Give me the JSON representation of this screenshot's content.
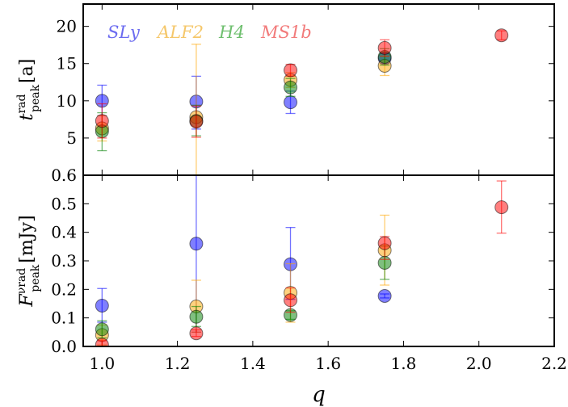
{
  "chart_data": {
    "type": "scatter",
    "x_axis": {
      "label": "q",
      "lim": [
        0.95,
        2.2
      ],
      "ticks": [
        1.0,
        1.2,
        1.4,
        1.6,
        1.8,
        2.0,
        2.2
      ],
      "tick_labels": [
        "1.0",
        "1.2",
        "1.4",
        "1.6",
        "1.8",
        "2.0",
        "2.2"
      ]
    },
    "legend": {
      "placement": "top-left",
      "entries": [
        {
          "label": "SLy",
          "color": "#6b6bf0"
        },
        {
          "label": "ALF2",
          "color": "#f5c76a"
        },
        {
          "label": "H4",
          "color": "#6ebf6e"
        },
        {
          "label": "MS1b",
          "color": "#f27b7b"
        }
      ]
    },
    "series_colors": {
      "SLy": "#0000ff",
      "ALF2": "#ffa500",
      "H4": "#008000",
      "MS1b": "#ff0000"
    },
    "panels": [
      {
        "id": "top",
        "ylabel_main": "t",
        "ylabel_sup": "rad",
        "ylabel_sub": "peak",
        "ylabel_unit": "[a]",
        "ylim": [
          0,
          23
        ],
        "ticks": [
          5,
          10,
          15,
          20
        ],
        "tick_labels": [
          "5",
          "10",
          "15",
          "20"
        ],
        "series": [
          {
            "name": "SLy",
            "points": [
              {
                "x": 1.0,
                "y": 10.0,
                "lo": 8.0,
                "hi": 12.1
              },
              {
                "x": 1.25,
                "y": 9.9,
                "lo": 6.2,
                "hi": 13.3
              },
              {
                "x": 1.5,
                "y": 9.8,
                "lo": 8.3,
                "hi": 11.3
              },
              {
                "x": 1.75,
                "y": 15.7,
                "lo": 15.0,
                "hi": 16.4
              }
            ]
          },
          {
            "name": "ALF2",
            "points": [
              {
                "x": 1.0,
                "y": 6.3,
                "lo": 4.6,
                "hi": 8.0
              },
              {
                "x": 1.25,
                "y": 7.8,
                "lo": 0.0,
                "hi": 17.6
              },
              {
                "x": 1.5,
                "y": 12.8,
                "lo": 11.8,
                "hi": 13.8
              },
              {
                "x": 1.75,
                "y": 14.7,
                "lo": 13.4,
                "hi": 16.0
              }
            ]
          },
          {
            "name": "H4",
            "points": [
              {
                "x": 1.0,
                "y": 5.9,
                "lo": 3.3,
                "hi": 8.4
              },
              {
                "x": 1.25,
                "y": 7.3,
                "lo": 5.3,
                "hi": 9.4
              },
              {
                "x": 1.5,
                "y": 11.8,
                "lo": 10.6,
                "hi": 13.0
              },
              {
                "x": 1.75,
                "y": 15.9,
                "lo": 14.8,
                "hi": 17.0
              }
            ]
          },
          {
            "name": "MS1b",
            "points": [
              {
                "x": 1.0,
                "y": 7.3,
                "lo": 5.0,
                "hi": 9.6
              },
              {
                "x": 1.25,
                "y": 7.2,
                "lo": 5.1,
                "hi": 9.3
              },
              {
                "x": 1.5,
                "y": 14.1,
                "lo": 13.3,
                "hi": 14.9
              },
              {
                "x": 1.75,
                "y": 17.1,
                "lo": 16.0,
                "hi": 18.2
              },
              {
                "x": 2.06,
                "y": 18.8,
                "lo": 18.2,
                "hi": 19.4
              }
            ]
          }
        ]
      },
      {
        "id": "bottom",
        "ylabel_main": "F",
        "ylabel_sup": "νrad",
        "ylabel_sub": "peak",
        "ylabel_unit": "[mJy]",
        "ylim": [
          0,
          0.6
        ],
        "ticks": [
          0.0,
          0.1,
          0.2,
          0.3,
          0.4,
          0.5,
          0.6
        ],
        "tick_labels": [
          "0.0",
          "0.1",
          "0.2",
          "0.3",
          "0.4",
          "0.5",
          "0.6"
        ],
        "series": [
          {
            "name": "SLy",
            "points": [
              {
                "x": 1.0,
                "y": 0.143,
                "lo": 0.085,
                "hi": 0.203
              },
              {
                "x": 1.25,
                "y": 0.36,
                "lo": 0.05,
                "hi": 0.6
              },
              {
                "x": 1.5,
                "y": 0.288,
                "lo": 0.165,
                "hi": 0.417
              },
              {
                "x": 1.75,
                "y": 0.177,
                "lo": 0.17,
                "hi": 0.184
              }
            ]
          },
          {
            "name": "ALF2",
            "points": [
              {
                "x": 1.0,
                "y": 0.04,
                "lo": 0.005,
                "hi": 0.075
              },
              {
                "x": 1.25,
                "y": 0.14,
                "lo": 0.05,
                "hi": 0.232
              },
              {
                "x": 1.5,
                "y": 0.188,
                "lo": 0.085,
                "hi": 0.29
              },
              {
                "x": 1.75,
                "y": 0.337,
                "lo": 0.215,
                "hi": 0.46
              }
            ]
          },
          {
            "name": "H4",
            "points": [
              {
                "x": 1.0,
                "y": 0.06,
                "lo": 0.03,
                "hi": 0.09
              },
              {
                "x": 1.25,
                "y": 0.104,
                "lo": 0.07,
                "hi": 0.14
              },
              {
                "x": 1.5,
                "y": 0.11,
                "lo": 0.095,
                "hi": 0.125
              },
              {
                "x": 1.75,
                "y": 0.293,
                "lo": 0.235,
                "hi": 0.352
              }
            ]
          },
          {
            "name": "MS1b",
            "points": [
              {
                "x": 1.0,
                "y": 0.006,
                "lo": 0.0,
                "hi": 0.02
              },
              {
                "x": 1.25,
                "y": 0.046,
                "lo": 0.035,
                "hi": 0.058
              },
              {
                "x": 1.5,
                "y": 0.162,
                "lo": 0.12,
                "hi": 0.205
              },
              {
                "x": 1.75,
                "y": 0.362,
                "lo": 0.305,
                "hi": 0.385
              },
              {
                "x": 2.06,
                "y": 0.488,
                "lo": 0.397,
                "hi": 0.58
              }
            ]
          }
        ]
      }
    ]
  }
}
